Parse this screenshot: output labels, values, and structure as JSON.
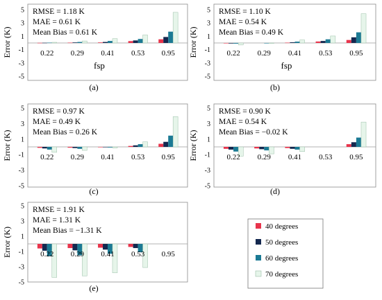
{
  "chart_data": [
    {
      "type": "bar",
      "panel_label": "(a)",
      "ylabel": "Error (K)",
      "xlabel": "fsp",
      "ylim": [
        -5,
        5
      ],
      "yticks": [
        -5,
        -3,
        -1,
        1,
        3,
        5
      ],
      "categories": [
        "0.22",
        "0.29",
        "0.41",
        "0.53",
        "0.95"
      ],
      "stats": [
        "RMSE = 1.18 K",
        "MAE = 0.61 K",
        "Mean Bias = 0.61 K"
      ],
      "series": [
        {
          "name": "40 degrees",
          "values": [
            0.02,
            0.05,
            0.08,
            0.28,
            0.55
          ]
        },
        {
          "name": "50 degrees",
          "values": [
            0.03,
            0.08,
            0.15,
            0.38,
            0.9
          ]
        },
        {
          "name": "60 degrees",
          "values": [
            0.05,
            0.15,
            0.3,
            0.6,
            1.7
          ]
        },
        {
          "name": "70 degrees",
          "values": [
            0.1,
            0.3,
            0.65,
            1.2,
            4.6
          ]
        }
      ]
    },
    {
      "type": "bar",
      "panel_label": "(b)",
      "ylabel": "Error (K)",
      "xlabel": "fsp",
      "ylim": [
        -5,
        5
      ],
      "yticks": [
        -5,
        -3,
        -1,
        1,
        3,
        5
      ],
      "categories": [
        "0.22",
        "0.29",
        "0.41",
        "0.53",
        "0.95"
      ],
      "stats": [
        "RMSE = 1.10 K",
        "MAE = 0.54 K",
        "Mean Bias = 0.49 K"
      ],
      "series": [
        {
          "name": "40 degrees",
          "values": [
            -0.05,
            0.0,
            0.05,
            0.22,
            0.45
          ]
        },
        {
          "name": "50 degrees",
          "values": [
            -0.08,
            0.0,
            0.1,
            0.3,
            0.85
          ]
        },
        {
          "name": "60 degrees",
          "values": [
            -0.1,
            -0.02,
            0.2,
            0.55,
            1.6
          ]
        },
        {
          "name": "70 degrees",
          "values": [
            -0.3,
            -0.05,
            0.45,
            1.05,
            4.4
          ]
        }
      ]
    },
    {
      "type": "bar",
      "panel_label": "(c)",
      "ylabel": "Error (K)",
      "xlabel": "",
      "ylim": [
        -5,
        5
      ],
      "yticks": [
        -5,
        -3,
        -1,
        1,
        3,
        5
      ],
      "categories": [
        "0.22",
        "0.29",
        "0.41",
        "0.53",
        "0.95"
      ],
      "stats": [
        "RMSE = 0.97 K",
        "MAE = 0.49 K",
        "Mean Bias = 0.26 K"
      ],
      "series": [
        {
          "name": "40 degrees",
          "values": [
            -0.12,
            -0.1,
            -0.03,
            0.12,
            0.4
          ]
        },
        {
          "name": "50 degrees",
          "values": [
            -0.2,
            -0.15,
            -0.05,
            0.2,
            0.65
          ]
        },
        {
          "name": "60 degrees",
          "values": [
            -0.35,
            -0.25,
            -0.08,
            0.35,
            1.45
          ]
        },
        {
          "name": "70 degrees",
          "values": [
            -0.7,
            -0.45,
            -0.15,
            0.65,
            3.9
          ]
        }
      ]
    },
    {
      "type": "bar",
      "panel_label": "(d)",
      "ylabel": "Error (K)",
      "xlabel": "",
      "ylim": [
        -5,
        5
      ],
      "yticks": [
        -5,
        -3,
        -1,
        1,
        3,
        5
      ],
      "categories": [
        "0.22",
        "0.29",
        "0.41",
        "0.53",
        "0.95"
      ],
      "stats": [
        "RMSE = 0.90 K",
        "MAE = 0.54 K",
        "Mean Bias = −0.02 K"
      ],
      "series": [
        {
          "name": "40 degrees",
          "values": [
            -0.25,
            -0.2,
            -0.15,
            0.0,
            0.35
          ]
        },
        {
          "name": "50 degrees",
          "values": [
            -0.35,
            -0.3,
            -0.25,
            0.0,
            0.6
          ]
        },
        {
          "name": "60 degrees",
          "values": [
            -0.6,
            -0.45,
            -0.35,
            0.0,
            1.2
          ]
        },
        {
          "name": "70 degrees",
          "values": [
            -1.2,
            -0.9,
            -0.6,
            0.0,
            3.2
          ]
        }
      ]
    },
    {
      "type": "bar",
      "panel_label": "(e)",
      "ylabel": "Error (K)",
      "xlabel": "",
      "ylim": [
        -5,
        5
      ],
      "yticks": [
        -5,
        -3,
        -1,
        1,
        3,
        5
      ],
      "categories": [
        "0.22",
        "0.29",
        "0.41",
        "0.53",
        "0.95"
      ],
      "stats": [
        "RMSE = 1.91 K",
        "MAE = 1.31 K",
        "Mean Bias = −1.31 K"
      ],
      "series": [
        {
          "name": "40 degrees",
          "values": [
            -0.6,
            -0.55,
            -0.5,
            -0.4,
            0.0
          ]
        },
        {
          "name": "50 degrees",
          "values": [
            -0.9,
            -0.85,
            -0.75,
            -0.55,
            0.0
          ]
        },
        {
          "name": "60 degrees",
          "values": [
            -1.6,
            -1.5,
            -1.3,
            -1.1,
            0.0
          ]
        },
        {
          "name": "70 degrees",
          "values": [
            -4.4,
            -4.2,
            -3.8,
            -3.1,
            0.0
          ]
        }
      ]
    }
  ],
  "legend": {
    "placement": "bottom-right",
    "items": [
      "40 degrees",
      "50 degrees",
      "60 degrees",
      "70 degrees"
    ]
  },
  "colors": {
    "40 degrees": "#e8344c",
    "50 degrees": "#14284f",
    "60 degrees": "#1b7a94",
    "70 degrees": "#e6f5ea",
    "axis": "#9a9a9a",
    "frame": "#8a8a8a"
  }
}
